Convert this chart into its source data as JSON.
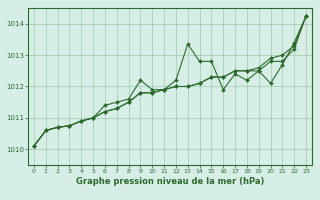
{
  "bg_color": "#d6eee6",
  "grid_color": "#a0c8b0",
  "line_color": "#2d6a2d",
  "title": "Graphe pression niveau de la mer (hPa)",
  "xlim": [
    -0.5,
    23.5
  ],
  "ylim": [
    1009.5,
    1014.5
  ],
  "yticks": [
    1010,
    1011,
    1012,
    1013,
    1014
  ],
  "xticks": [
    0,
    1,
    2,
    3,
    4,
    5,
    6,
    7,
    8,
    9,
    10,
    11,
    12,
    13,
    14,
    15,
    16,
    17,
    18,
    19,
    20,
    21,
    22,
    23
  ],
  "series": [
    [
      1010.1,
      1010.6,
      1010.7,
      1010.75,
      1010.9,
      1011.0,
      1011.4,
      1011.5,
      1011.6,
      1012.2,
      1011.9,
      1011.9,
      1012.2,
      1013.35,
      1012.8,
      1012.8,
      1011.9,
      1012.4,
      1012.2,
      1012.5,
      1012.1,
      1012.7,
      1013.4,
      1014.25
    ],
    [
      1010.1,
      1010.6,
      1010.7,
      1010.75,
      1010.9,
      1011.0,
      1011.2,
      1011.3,
      1011.5,
      1011.8,
      1011.8,
      1011.9,
      1012.0,
      1012.0,
      1012.1,
      1012.3,
      1012.3,
      1012.5,
      1012.5,
      1012.5,
      1012.8,
      1012.8,
      1013.2,
      1014.25
    ],
    [
      1010.1,
      1010.6,
      1010.7,
      1010.75,
      1010.9,
      1011.0,
      1011.2,
      1011.3,
      1011.5,
      1011.8,
      1011.8,
      1011.9,
      1012.0,
      1012.0,
      1012.1,
      1012.3,
      1012.3,
      1012.5,
      1012.5,
      1012.6,
      1012.9,
      1013.0,
      1013.3,
      1014.25
    ]
  ]
}
